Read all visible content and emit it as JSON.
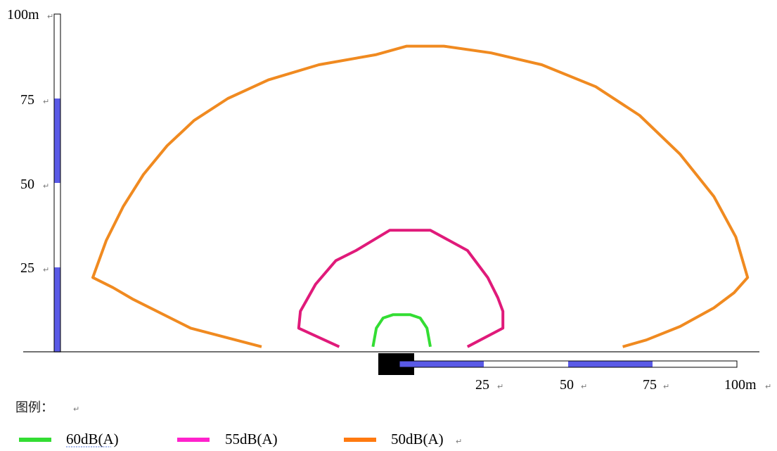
{
  "colors": {
    "scale_filled": "#5a5ae6",
    "scale_empty": "#ffffff",
    "source_block": "#000000",
    "ground": "#444444"
  },
  "vertical_scale": {
    "ticks": [
      "25",
      "50",
      "75",
      "100m"
    ],
    "max_value": 100
  },
  "horizontal_scale": {
    "ticks": [
      "25",
      "50",
      "75",
      "100m"
    ],
    "max_value": 100
  },
  "return_mark": "↵",
  "legend": {
    "title": "图例：",
    "items": [
      {
        "label": "60dB(A)",
        "color": "#33dd33"
      },
      {
        "label": "55dB(A)",
        "color": "#ff22cc"
      },
      {
        "label": "50dB(A)",
        "color": "#ff7a10"
      }
    ]
  },
  "contours": [
    {
      "level": "60dB(A)",
      "color": "#33dd33",
      "points": [
        [
          -7,
          1.5
        ],
        [
          -6,
          7
        ],
        [
          -4,
          10
        ],
        [
          -1,
          11
        ],
        [
          4,
          11
        ],
        [
          7,
          10
        ],
        [
          9,
          7
        ],
        [
          10,
          1.5
        ]
      ]
    },
    {
      "level": "55dB(A)",
      "color": "#e01a7a",
      "points": [
        [
          -17,
          1.5
        ],
        [
          -29,
          7
        ],
        [
          -28.5,
          12
        ],
        [
          -24,
          20
        ],
        [
          -18,
          27
        ],
        [
          -12,
          30
        ],
        [
          -2,
          36
        ],
        [
          10,
          36
        ],
        [
          21,
          30
        ],
        [
          27,
          22
        ],
        [
          30,
          16
        ],
        [
          31.5,
          12
        ],
        [
          31.5,
          7
        ],
        [
          21,
          1.5
        ]
      ]
    },
    {
      "level": "50dB(A)",
      "color": "#f08a20",
      "points": [
        [
          -40,
          1.5
        ],
        [
          -61,
          7
        ],
        [
          -78,
          15.5
        ],
        [
          -84,
          19
        ],
        [
          -90,
          22
        ],
        [
          -86,
          33
        ],
        [
          -81,
          43
        ],
        [
          -75,
          52.5
        ],
        [
          -68,
          61
        ],
        [
          -60,
          68.5
        ],
        [
          -50,
          75
        ],
        [
          -38,
          80.5
        ],
        [
          -23,
          85
        ],
        [
          -6,
          88
        ],
        [
          3,
          90.5
        ],
        [
          14,
          90.5
        ],
        [
          28,
          88.5
        ],
        [
          43,
          85
        ],
        [
          59,
          78.5
        ],
        [
          72,
          70
        ],
        [
          84,
          58.5
        ],
        [
          94,
          46
        ],
        [
          100.5,
          34
        ],
        [
          104,
          22
        ],
        [
          100,
          17.5
        ],
        [
          94,
          13
        ],
        [
          84,
          7.5
        ],
        [
          74,
          3.5
        ],
        [
          67,
          1.5
        ]
      ]
    }
  ]
}
